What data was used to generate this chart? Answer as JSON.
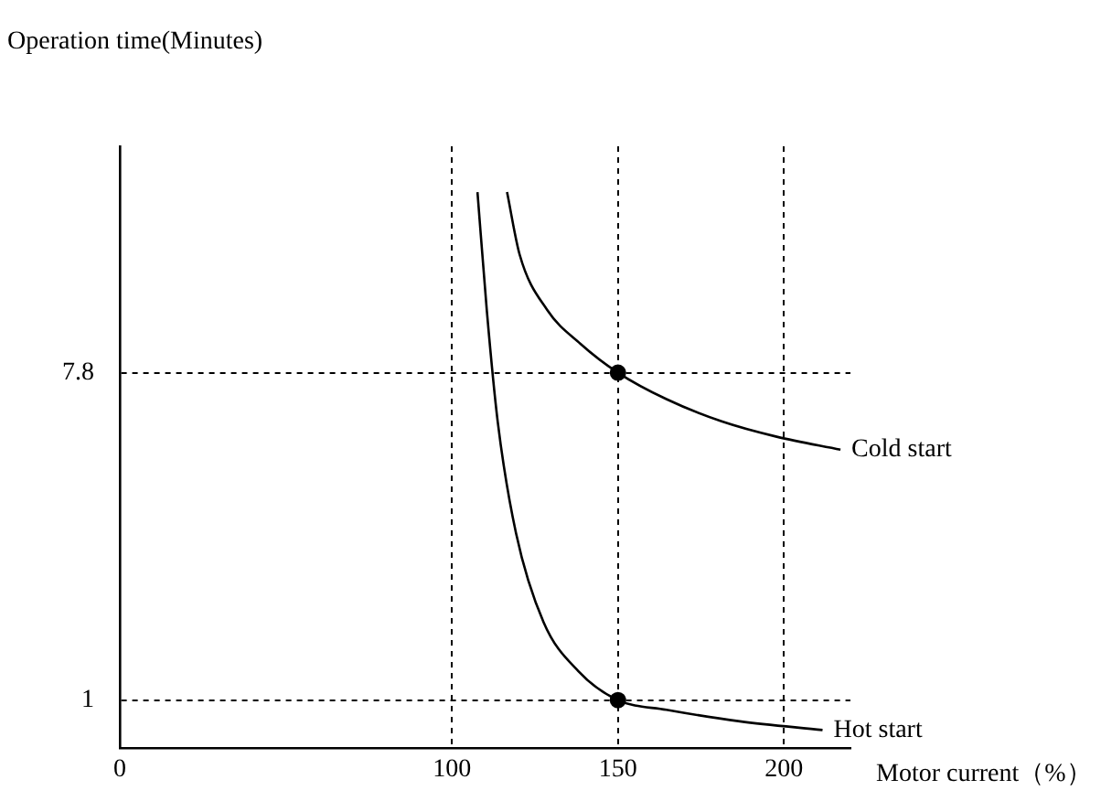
{
  "chart_data": {
    "type": "line",
    "xlabel": "Motor current（%）",
    "ylabel": "Operation time(Minutes)",
    "xlim": [
      0,
      220
    ],
    "ylim": [
      0,
      12.5
    ],
    "xticks": [
      0,
      100,
      150,
      200
    ],
    "yticks": [
      1,
      7.8
    ],
    "grid": true,
    "legend": false,
    "marker": "none",
    "line_style": "solid",
    "series": [
      {
        "name": "Cold start",
        "color": "#000000",
        "x": [
          116.6,
          120.4,
          128.7,
          138.7,
          150,
          164.6,
          181.2,
          197.8,
          217
        ],
        "values": [
          11.55,
          10.25,
          9.1,
          8.4,
          7.8,
          7.25,
          6.79,
          6.47,
          6.2
        ]
      },
      {
        "name": "Hot start",
        "color": "#000000",
        "x": [
          107.7,
          110.5,
          113.8,
          119.3,
          127.6,
          138.1,
          150,
          164.6,
          186.7,
          211.6
        ],
        "values": [
          11.55,
          9.1,
          6.78,
          4.47,
          2.62,
          1.6,
          1,
          0.8,
          0.56,
          0.38
        ]
      },
      {
        "type": "scatter",
        "marker": "circle",
        "color": "#000000",
        "x": [
          150,
          150
        ],
        "values": [
          7.8,
          1
        ]
      }
    ]
  }
}
